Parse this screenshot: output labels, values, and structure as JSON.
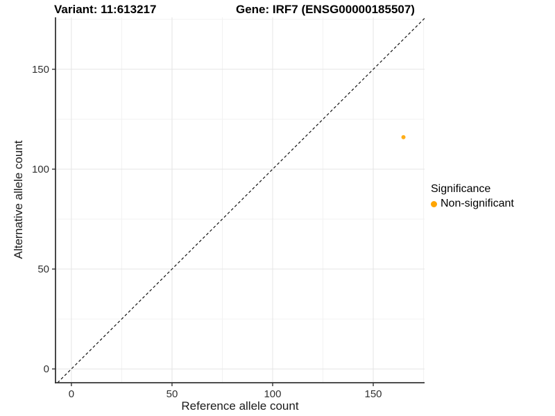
{
  "header": {
    "variant_title": "Variant: 11:613217",
    "gene_title": "Gene: IRF7 (ENSG00000185507)"
  },
  "chart_data": {
    "type": "scatter",
    "xlabel": "Reference allele count",
    "ylabel": "Alternative allele count",
    "xlim": [
      -7.9,
      175.5
    ],
    "ylim": [
      -6.9,
      176.0
    ],
    "x_major_ticks": [
      0,
      50,
      100,
      150
    ],
    "y_major_ticks": [
      0,
      50,
      100,
      150
    ],
    "x_minor_gridlines": [
      25,
      75,
      125,
      175
    ],
    "y_minor_gridlines": [
      25,
      75,
      125,
      175
    ],
    "grid": true,
    "identity_line": {
      "slope": 1,
      "intercept": 0,
      "style": "dashed",
      "color": "#111111"
    },
    "series": [
      {
        "name": "Non-significant",
        "color": "#FFA500",
        "points": [
          {
            "x": 165,
            "y": 116
          }
        ]
      }
    ],
    "legend": {
      "position": "right",
      "title": "Significance",
      "items": [
        {
          "label": "Non-significant",
          "color": "#FFA500"
        }
      ]
    },
    "colors": {
      "grid_major": "#e4e4e4",
      "grid_minor": "#f2f2f2",
      "axis_line": "#333333",
      "tick_label": "#303030"
    }
  }
}
